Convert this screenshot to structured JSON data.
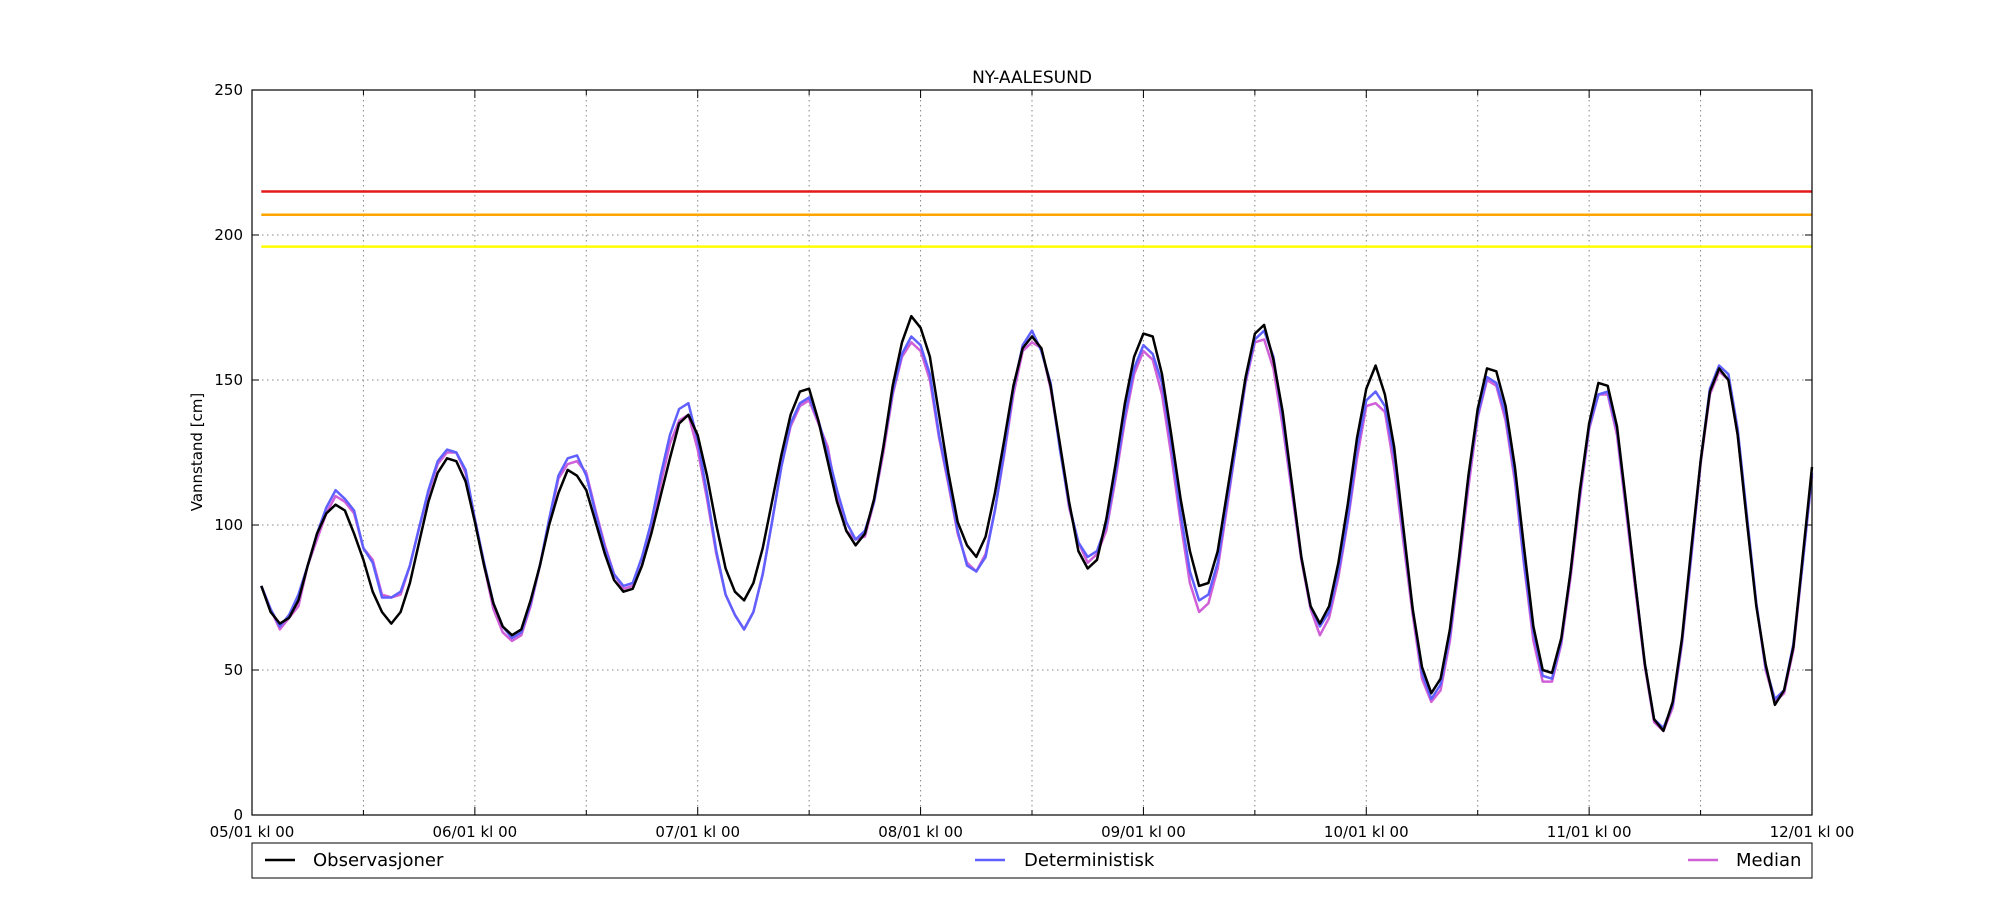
{
  "chart_data": {
    "type": "line",
    "title": "NY-AALESUND",
    "ylabel": "Vannstand [cm]",
    "xlabel": "",
    "ylim": [
      0,
      250
    ],
    "yticks": [
      0,
      50,
      100,
      150,
      200,
      250
    ],
    "x_range_hours": [
      0,
      168
    ],
    "x_step_hours": 1,
    "x_start_index_hours": 1,
    "xtick_labels": [
      "05/01 kl 00",
      "06/01 kl 00",
      "07/01 kl 00",
      "08/01 kl 00",
      "09/01 kl 00",
      "10/01 kl 00",
      "11/01 kl 00",
      "12/01 kl 00"
    ],
    "minor_grid_hours": [
      12,
      36,
      60,
      84,
      108,
      132,
      156
    ],
    "grid": true,
    "legend_position": "bottom",
    "thresholds": [
      {
        "value": 215,
        "color": "#e41a1c"
      },
      {
        "value": 207,
        "color": "#ffa500"
      },
      {
        "value": 196,
        "color": "#ffff00"
      }
    ],
    "series": [
      {
        "name": "Observasjoner",
        "color": "#000000",
        "values": [
          79,
          70,
          66,
          68,
          74,
          86,
          97,
          104,
          107,
          105,
          97,
          88,
          77,
          70,
          66,
          70,
          80,
          94,
          108,
          118,
          123,
          122,
          115,
          101,
          86,
          73,
          65,
          62,
          64,
          74,
          86,
          100,
          111,
          119,
          117,
          112,
          101,
          90,
          81,
          77,
          78,
          86,
          97,
          110,
          123,
          135,
          138,
          131,
          117,
          100,
          85,
          77,
          74,
          80,
          92,
          108,
          124,
          138,
          146,
          147,
          136,
          122,
          108,
          98,
          93,
          97,
          109,
          127,
          148,
          163,
          172,
          168,
          158,
          138,
          118,
          101,
          93,
          89,
          96,
          111,
          129,
          148,
          161,
          165,
          161,
          148,
          128,
          108,
          91,
          85,
          88,
          102,
          121,
          142,
          158,
          166,
          165,
          152,
          131,
          109,
          91,
          79,
          80,
          91,
          111,
          131,
          151,
          166,
          169,
          157,
          139,
          114,
          89,
          72,
          66,
          72,
          87,
          107,
          130,
          147,
          155,
          145,
          127,
          99,
          71,
          51,
          42,
          47,
          64,
          89,
          117,
          140,
          154,
          153,
          141,
          120,
          92,
          65,
          50,
          49,
          61,
          84,
          112,
          135,
          149,
          148,
          134,
          107,
          79,
          52,
          33,
          29,
          39,
          61,
          92,
          122,
          146,
          154,
          150,
          131,
          101,
          72,
          52,
          38,
          43,
          58,
          89,
          120
        ]
      },
      {
        "name": "Deterministisk",
        "color": "#6060ff",
        "values": [
          79,
          71,
          65,
          69,
          76,
          86,
          97,
          106,
          112,
          109,
          105,
          92,
          87,
          75,
          75,
          77,
          86,
          99,
          112,
          122,
          126,
          125,
          119,
          102,
          87,
          73,
          65,
          61,
          63,
          73,
          86,
          102,
          117,
          123,
          124,
          117,
          104,
          92,
          83,
          79,
          80,
          89,
          101,
          117,
          131,
          140,
          142,
          129,
          111,
          91,
          76,
          69,
          64,
          70,
          83,
          101,
          120,
          135,
          142,
          144,
          136,
          125,
          112,
          101,
          95,
          98,
          108,
          127,
          146,
          159,
          165,
          162,
          152,
          131,
          115,
          98,
          86,
          84,
          89,
          105,
          125,
          147,
          162,
          167,
          160,
          149,
          126,
          107,
          94,
          89,
          91,
          100,
          118,
          138,
          154,
          162,
          159,
          149,
          128,
          104,
          84,
          74,
          76,
          87,
          108,
          128,
          150,
          164,
          167,
          158,
          137,
          113,
          89,
          72,
          65,
          70,
          84,
          102,
          126,
          143,
          146,
          141,
          124,
          97,
          71,
          49,
          40,
          45,
          62,
          88,
          116,
          138,
          151,
          149,
          138,
          117,
          87,
          63,
          48,
          47,
          60,
          84,
          111,
          134,
          145,
          146,
          133,
          106,
          79,
          52,
          33,
          30,
          38,
          60,
          90,
          122,
          147,
          155,
          152,
          133,
          103,
          73,
          51,
          40,
          43,
          59,
          87,
          118
        ]
      },
      {
        "name": "Median",
        "color": "#d060d8",
        "values": [
          79,
          71,
          64,
          68,
          72,
          86,
          95,
          104,
          110,
          108,
          104,
          92,
          88,
          76,
          75,
          76,
          86,
          99,
          111,
          121,
          125,
          125,
          118,
          102,
          86,
          71,
          63,
          60,
          62,
          72,
          86,
          101,
          116,
          121,
          122,
          118,
          105,
          93,
          83,
          78,
          79,
          86,
          99,
          114,
          128,
          136,
          138,
          126,
          109,
          90,
          76,
          69,
          64,
          70,
          83,
          101,
          120,
          134,
          141,
          143,
          135,
          127,
          109,
          98,
          95,
          96,
          108,
          125,
          145,
          158,
          163,
          160,
          150,
          130,
          114,
          97,
          87,
          84,
          90,
          105,
          124,
          145,
          160,
          163,
          161,
          147,
          127,
          106,
          94,
          87,
          90,
          98,
          116,
          136,
          152,
          160,
          157,
          145,
          124,
          101,
          80,
          70,
          73,
          85,
          106,
          128,
          149,
          163,
          164,
          154,
          134,
          111,
          88,
          71,
          62,
          68,
          82,
          101,
          123,
          141,
          142,
          139,
          120,
          94,
          69,
          47,
          39,
          43,
          60,
          86,
          113,
          137,
          150,
          148,
          136,
          115,
          86,
          60,
          46,
          46,
          59,
          82,
          109,
          133,
          145,
          145,
          131,
          104,
          77,
          51,
          32,
          29,
          37,
          59,
          89,
          121,
          145,
          153,
          150,
          131,
          101,
          73,
          50,
          39,
          42,
          57,
          87,
          117
        ]
      }
    ]
  }
}
